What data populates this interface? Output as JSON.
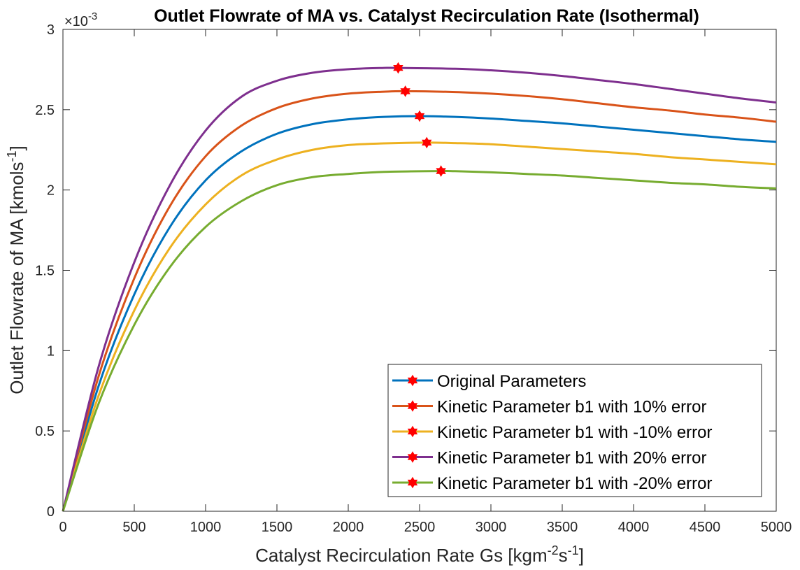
{
  "chart_data": {
    "type": "line",
    "title": "Outlet Flowrate of MA vs. Catalyst Recirculation Rate (Isothermal)",
    "exponent_label": {
      "prefix": "×10",
      "power": "-3"
    },
    "xlabel": {
      "main": "Catalyst Recirculation Rate Gs [kgm",
      "sup1": "-2",
      "mid": "s",
      "sup2": "-1",
      "end": "]"
    },
    "ylabel": {
      "main": "Outlet Flowrate of MA [kmols",
      "sup": "-1",
      "end": "]"
    },
    "xlim": [
      0,
      5000
    ],
    "ylim": [
      0,
      3
    ],
    "xticks": [
      0,
      500,
      1000,
      1500,
      2000,
      2500,
      3000,
      3500,
      4000,
      4500,
      5000
    ],
    "yticks": [
      0,
      0.5,
      1,
      1.5,
      2,
      2.5,
      3
    ],
    "ytick_labels": [
      "0",
      "0.5",
      "1",
      "1.5",
      "2",
      "2.5",
      "3"
    ],
    "y_unit_note": "values in units of 1e-3 kmol/s",
    "grid": false,
    "legend_position": "bottom-right",
    "marker_color": "#FF0000",
    "series": [
      {
        "name": "Original Parameters",
        "color": "#0072BD",
        "x": [
          0,
          250,
          500,
          750,
          1000,
          1250,
          1500,
          1750,
          2000,
          2250,
          2500,
          2750,
          3000,
          3250,
          3500,
          3750,
          4000,
          4250,
          4500,
          4750,
          5000
        ],
        "y": [
          0,
          0.78,
          1.35,
          1.77,
          2.06,
          2.24,
          2.35,
          2.41,
          2.44,
          2.455,
          2.46,
          2.455,
          2.445,
          2.43,
          2.415,
          2.395,
          2.375,
          2.355,
          2.335,
          2.315,
          2.3
        ],
        "max_point": [
          2500,
          2.46
        ]
      },
      {
        "name": "Kinetic Parameter b1 with 10% error",
        "color": "#D95319",
        "x": [
          0,
          250,
          500,
          750,
          1000,
          1250,
          1500,
          1750,
          2000,
          2250,
          2400,
          2750,
          3000,
          3250,
          3500,
          3750,
          4000,
          4250,
          4500,
          4750,
          5000
        ],
        "y": [
          0,
          0.84,
          1.45,
          1.9,
          2.21,
          2.4,
          2.51,
          2.57,
          2.6,
          2.612,
          2.615,
          2.61,
          2.6,
          2.585,
          2.565,
          2.54,
          2.515,
          2.495,
          2.47,
          2.45,
          2.425
        ],
        "max_point": [
          2400,
          2.615
        ]
      },
      {
        "name": "Kinetic Parameter b1 with -10% error",
        "color": "#EDB120",
        "x": [
          0,
          250,
          500,
          750,
          1000,
          1250,
          1500,
          1750,
          2000,
          2250,
          2550,
          2750,
          3000,
          3250,
          3500,
          3750,
          4000,
          4250,
          4500,
          4750,
          5000
        ],
        "y": [
          0,
          0.72,
          1.25,
          1.64,
          1.91,
          2.09,
          2.19,
          2.25,
          2.28,
          2.29,
          2.295,
          2.292,
          2.285,
          2.27,
          2.255,
          2.24,
          2.225,
          2.205,
          2.19,
          2.175,
          2.16
        ],
        "max_point": [
          2550,
          2.295
        ]
      },
      {
        "name": "Kinetic Parameter b1 with 20% error",
        "color": "#7E2F8E",
        "x": [
          0,
          250,
          500,
          750,
          1000,
          1250,
          1500,
          1750,
          2000,
          2250,
          2350,
          2750,
          3000,
          3250,
          3500,
          3750,
          4000,
          4250,
          4500,
          4750,
          5000
        ],
        "y": [
          0,
          0.9,
          1.55,
          2.03,
          2.37,
          2.58,
          2.68,
          2.73,
          2.752,
          2.76,
          2.76,
          2.755,
          2.745,
          2.73,
          2.71,
          2.685,
          2.66,
          2.63,
          2.6,
          2.57,
          2.545
        ],
        "max_point": [
          2350,
          2.76
        ]
      },
      {
        "name": "Kinetic Parameter b1 with -20% error",
        "color": "#77AC30",
        "x": [
          0,
          250,
          500,
          750,
          1000,
          1250,
          1500,
          1750,
          2000,
          2250,
          2650,
          2750,
          3000,
          3250,
          3500,
          3750,
          4000,
          4250,
          4500,
          4750,
          5000
        ],
        "y": [
          0,
          0.67,
          1.16,
          1.52,
          1.77,
          1.93,
          2.03,
          2.08,
          2.1,
          2.113,
          2.118,
          2.117,
          2.11,
          2.1,
          2.09,
          2.075,
          2.06,
          2.045,
          2.035,
          2.02,
          2.01
        ],
        "max_point": [
          2650,
          2.118
        ]
      }
    ]
  }
}
